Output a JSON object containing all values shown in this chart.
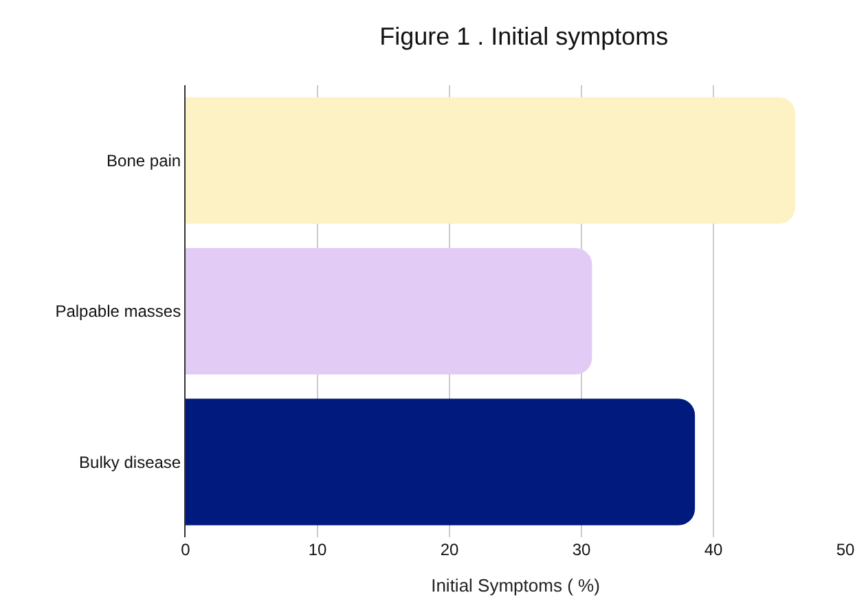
{
  "chart_data": {
    "type": "bar",
    "orientation": "horizontal",
    "title": "Figure 1 . Initial symptoms",
    "xlabel": "Initial Symptoms ( %)",
    "categories": [
      "Bone pain",
      "Palpable masses",
      "Bulky disease"
    ],
    "values": [
      46.2,
      30.8,
      38.6
    ],
    "colors": [
      "#fdf2c4",
      "#e2ccf5",
      "#001a7d"
    ],
    "xlim": [
      0,
      50
    ],
    "xticks": [
      0,
      10,
      20,
      30,
      40,
      50
    ],
    "grid": "x"
  }
}
